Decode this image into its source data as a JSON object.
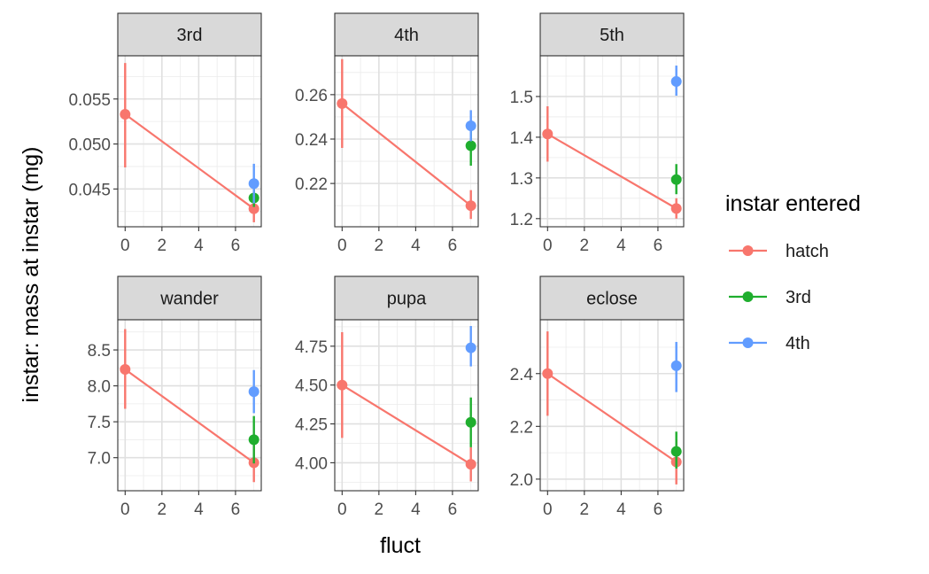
{
  "chart_data": {
    "type": "scatter",
    "layout": "facet-grid",
    "xlabel": "fluct",
    "ylabel": "instar: mass at instar (mg)",
    "legend": {
      "title": "instar entered",
      "placement": "right",
      "entries": [
        {
          "name": "hatch",
          "color": "#F8766D"
        },
        {
          "name": "3rd",
          "color": "#1FAE2E"
        },
        {
          "name": "4th",
          "color": "#619CFF"
        }
      ]
    },
    "grid": true,
    "xlim": [
      -0.4,
      7.4
    ],
    "x_ticks": [
      0,
      2,
      4,
      6
    ],
    "x_tick_labels": [
      "0",
      "2",
      "4",
      "6"
    ],
    "panels": [
      {
        "title": "3rd",
        "ylim": [
          0.0408,
          0.0598
        ],
        "y_ticks": [
          0.045,
          0.05,
          0.055
        ],
        "y_tick_labels": [
          "0.045",
          "0.050",
          "0.055"
        ],
        "series": [
          {
            "name": "hatch",
            "line": true,
            "points": [
              {
                "x": 0,
                "y": 0.0533,
                "lo": 0.0474,
                "hi": 0.059
              },
              {
                "x": 7,
                "y": 0.0428,
                "lo": 0.0413,
                "hi": 0.0443
              }
            ]
          },
          {
            "name": "3rd",
            "line": false,
            "points": [
              {
                "x": 7,
                "y": 0.044,
                "lo": 0.043,
                "hi": 0.045
              }
            ]
          },
          {
            "name": "4th",
            "line": false,
            "points": [
              {
                "x": 7,
                "y": 0.0456,
                "lo": 0.0434,
                "hi": 0.0478
              }
            ]
          }
        ]
      },
      {
        "title": "4th",
        "ylim": [
          0.2005,
          0.2775
        ],
        "y_ticks": [
          0.22,
          0.24,
          0.26
        ],
        "y_tick_labels": [
          "0.22",
          "0.24",
          "0.26"
        ],
        "series": [
          {
            "name": "hatch",
            "line": true,
            "points": [
              {
                "x": 0,
                "y": 0.256,
                "lo": 0.236,
                "hi": 0.276
              },
              {
                "x": 7,
                "y": 0.21,
                "lo": 0.204,
                "hi": 0.217
              }
            ]
          },
          {
            "name": "3rd",
            "line": false,
            "points": [
              {
                "x": 7,
                "y": 0.237,
                "lo": 0.228,
                "hi": 0.245
              }
            ]
          },
          {
            "name": "4th",
            "line": false,
            "points": [
              {
                "x": 7,
                "y": 0.246,
                "lo": 0.239,
                "hi": 0.253
              }
            ]
          }
        ]
      },
      {
        "title": "5th",
        "ylim": [
          1.18,
          1.6
        ],
        "y_ticks": [
          1.2,
          1.3,
          1.4,
          1.5
        ],
        "y_tick_labels": [
          "1.2",
          "1.3",
          "1.4",
          "1.5"
        ],
        "series": [
          {
            "name": "hatch",
            "line": true,
            "points": [
              {
                "x": 0,
                "y": 1.408,
                "lo": 1.34,
                "hi": 1.476
              },
              {
                "x": 7,
                "y": 1.225,
                "lo": 1.2,
                "hi": 1.25
              }
            ]
          },
          {
            "name": "3rd",
            "line": false,
            "points": [
              {
                "x": 7,
                "y": 1.296,
                "lo": 1.26,
                "hi": 1.334
              }
            ]
          },
          {
            "name": "4th",
            "line": false,
            "points": [
              {
                "x": 7,
                "y": 1.537,
                "lo": 1.502,
                "hi": 1.576
              }
            ]
          }
        ]
      },
      {
        "title": "wander",
        "ylim": [
          6.54,
          8.92
        ],
        "y_ticks": [
          7.0,
          7.5,
          8.0,
          8.5
        ],
        "y_tick_labels": [
          "7.0",
          "7.5",
          "8.0",
          "8.5"
        ],
        "series": [
          {
            "name": "hatch",
            "line": true,
            "points": [
              {
                "x": 0,
                "y": 8.23,
                "lo": 7.68,
                "hi": 8.79
              },
              {
                "x": 7,
                "y": 6.93,
                "lo": 6.66,
                "hi": 7.2
              }
            ]
          },
          {
            "name": "3rd",
            "line": false,
            "points": [
              {
                "x": 7,
                "y": 7.25,
                "lo": 6.92,
                "hi": 7.58
              }
            ]
          },
          {
            "name": "4th",
            "line": false,
            "points": [
              {
                "x": 7,
                "y": 7.92,
                "lo": 7.62,
                "hi": 8.22
              }
            ]
          }
        ]
      },
      {
        "title": "pupa",
        "ylim": [
          3.82,
          4.92
        ],
        "y_ticks": [
          4.0,
          4.25,
          4.5,
          4.75
        ],
        "y_tick_labels": [
          "4.00",
          "4.25",
          "4.50",
          "4.75"
        ],
        "series": [
          {
            "name": "hatch",
            "line": true,
            "points": [
              {
                "x": 0,
                "y": 4.5,
                "lo": 4.16,
                "hi": 4.84
              },
              {
                "x": 7,
                "y": 3.99,
                "lo": 3.88,
                "hi": 4.1
              }
            ]
          },
          {
            "name": "3rd",
            "line": false,
            "points": [
              {
                "x": 7,
                "y": 4.26,
                "lo": 4.1,
                "hi": 4.42
              }
            ]
          },
          {
            "name": "4th",
            "line": false,
            "points": [
              {
                "x": 7,
                "y": 4.74,
                "lo": 4.62,
                "hi": 4.88
              }
            ]
          }
        ]
      },
      {
        "title": "eclose",
        "ylim": [
          1.956,
          2.604
        ],
        "y_ticks": [
          2.0,
          2.2,
          2.4
        ],
        "y_tick_labels": [
          "2.0",
          "2.2",
          "2.4"
        ],
        "series": [
          {
            "name": "hatch",
            "line": true,
            "points": [
              {
                "x": 0,
                "y": 2.4,
                "lo": 2.24,
                "hi": 2.56
              },
              {
                "x": 7,
                "y": 2.065,
                "lo": 1.98,
                "hi": 2.15
              }
            ]
          },
          {
            "name": "3rd",
            "line": false,
            "points": [
              {
                "x": 7,
                "y": 2.105,
                "lo": 2.04,
                "hi": 2.18
              }
            ]
          },
          {
            "name": "4th",
            "line": false,
            "points": [
              {
                "x": 7,
                "y": 2.43,
                "lo": 2.33,
                "hi": 2.52
              }
            ]
          }
        ]
      }
    ]
  }
}
